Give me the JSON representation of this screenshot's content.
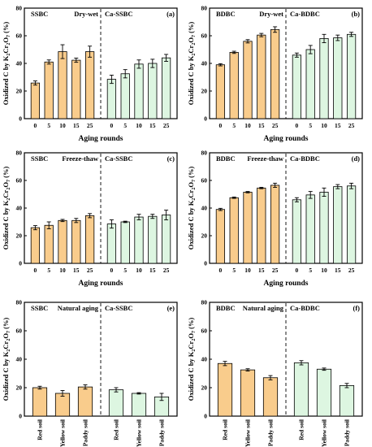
{
  "colors": {
    "left_fill": "#F9CC8C",
    "right_fill": "#DDF6E1",
    "edge": "#000000"
  },
  "ylabel_parts": [
    "Oxidized C by K",
    "2",
    "Cr",
    "2",
    "O",
    "7",
    " (%)"
  ],
  "xlabel": "Aging rounds",
  "chart_data": [
    {
      "type": "bar",
      "panel": "(a)",
      "group_left": "SSBC",
      "treatment": "Dry-wet",
      "group_right": "Ca-SSBC",
      "categories": [
        "0",
        "5",
        "10",
        "15",
        "25"
      ],
      "series": [
        {
          "name": "SSBC",
          "values": [
            25.8,
            41.0,
            48.5,
            42.3,
            48.5
          ],
          "errors": [
            1.5,
            1.5,
            5.0,
            1.5,
            4.0
          ]
        },
        {
          "name": "Ca-SSBC",
          "values": [
            28.5,
            32.5,
            39.5,
            40.0,
            44.0
          ],
          "errors": [
            3.0,
            3.0,
            3.0,
            3.0,
            2.5
          ]
        }
      ],
      "xlabel": "Aging rounds",
      "ylim": [
        0,
        80
      ],
      "yticks": [
        0,
        20,
        40,
        60,
        80
      ]
    },
    {
      "type": "bar",
      "panel": "(b)",
      "group_left": "BDBC",
      "treatment": "Dry-wet",
      "group_right": "Ca-BDBC",
      "categories": [
        "0",
        "5",
        "10",
        "15",
        "25"
      ],
      "series": [
        {
          "name": "BDBC",
          "values": [
            39.0,
            48.0,
            56.0,
            60.5,
            64.5
          ],
          "errors": [
            0.8,
            0.8,
            1.2,
            1.2,
            2.0
          ]
        },
        {
          "name": "Ca-BDBC",
          "values": [
            46.0,
            50.0,
            58.0,
            58.5,
            61.0
          ],
          "errors": [
            1.5,
            3.0,
            3.0,
            2.0,
            1.5
          ]
        }
      ],
      "xlabel": "Aging rounds",
      "ylim": [
        0,
        80
      ],
      "yticks": [
        0,
        20,
        40,
        60,
        80
      ]
    },
    {
      "type": "bar",
      "panel": "(c)",
      "group_left": "SSBC",
      "treatment": "Freeze-thaw",
      "group_right": "Ca-SSBC",
      "categories": [
        "0",
        "5",
        "10",
        "15",
        "25"
      ],
      "series": [
        {
          "name": "SSBC",
          "values": [
            25.8,
            27.5,
            31.0,
            31.0,
            34.5
          ],
          "errors": [
            1.5,
            2.5,
            0.8,
            1.5,
            1.5
          ]
        },
        {
          "name": "Ca-SSBC",
          "values": [
            28.5,
            30.0,
            33.5,
            34.0,
            35.0
          ],
          "errors": [
            3.0,
            0.5,
            2.0,
            1.5,
            3.5
          ]
        }
      ],
      "xlabel": "Aging rounds",
      "ylim": [
        0,
        80
      ],
      "yticks": [
        0,
        20,
        40,
        60,
        80
      ]
    },
    {
      "type": "bar",
      "panel": "(d)",
      "group_left": "BDBC",
      "treatment": "Freeze-thaw",
      "group_right": "Ca-BDBC",
      "categories": [
        "0",
        "5",
        "10",
        "15",
        "25"
      ],
      "series": [
        {
          "name": "BDBC",
          "values": [
            39.0,
            47.5,
            51.5,
            54.5,
            56.5
          ],
          "errors": [
            0.8,
            0.5,
            0.5,
            0.5,
            1.5
          ]
        },
        {
          "name": "Ca-BDBC",
          "values": [
            46.0,
            49.5,
            51.5,
            55.5,
            56.0
          ],
          "errors": [
            1.5,
            2.5,
            3.0,
            1.5,
            2.0
          ]
        }
      ],
      "xlabel": "Aging rounds",
      "ylim": [
        0,
        80
      ],
      "yticks": [
        0,
        20,
        40,
        60,
        80
      ]
    },
    {
      "type": "bar",
      "panel": "(e)",
      "group_left": "SSBC",
      "treatment": "Natural aging",
      "group_right": "Ca-SSBC",
      "categories": [
        "Red soil",
        "Yellow soil",
        "Paddy soil"
      ],
      "series": [
        {
          "name": "SSBC",
          "values": [
            20.0,
            16.0,
            20.5
          ],
          "errors": [
            1.0,
            2.0,
            1.5
          ]
        },
        {
          "name": "Ca-SSBC",
          "values": [
            18.5,
            16.0,
            13.5
          ],
          "errors": [
            1.5,
            0.5,
            2.5
          ]
        }
      ],
      "xlabel": "",
      "ylim": [
        0,
        80
      ],
      "yticks": [
        0,
        20,
        40,
        60,
        80
      ]
    },
    {
      "type": "bar",
      "panel": "(f)",
      "group_left": "BDBC",
      "treatment": "Natural aging",
      "group_right": "Ca-BDBC",
      "categories": [
        "Red soil",
        "Yellow soil",
        "Paddy soil"
      ],
      "series": [
        {
          "name": "BDBC",
          "values": [
            37.0,
            32.5,
            27.0
          ],
          "errors": [
            1.5,
            0.8,
            1.5
          ]
        },
        {
          "name": "Ca-BDBC",
          "values": [
            37.5,
            33.0,
            21.5
          ],
          "errors": [
            1.5,
            0.8,
            1.5
          ]
        }
      ],
      "xlabel": "",
      "ylim": [
        0,
        80
      ],
      "yticks": [
        0,
        20,
        40,
        60,
        80
      ]
    }
  ]
}
